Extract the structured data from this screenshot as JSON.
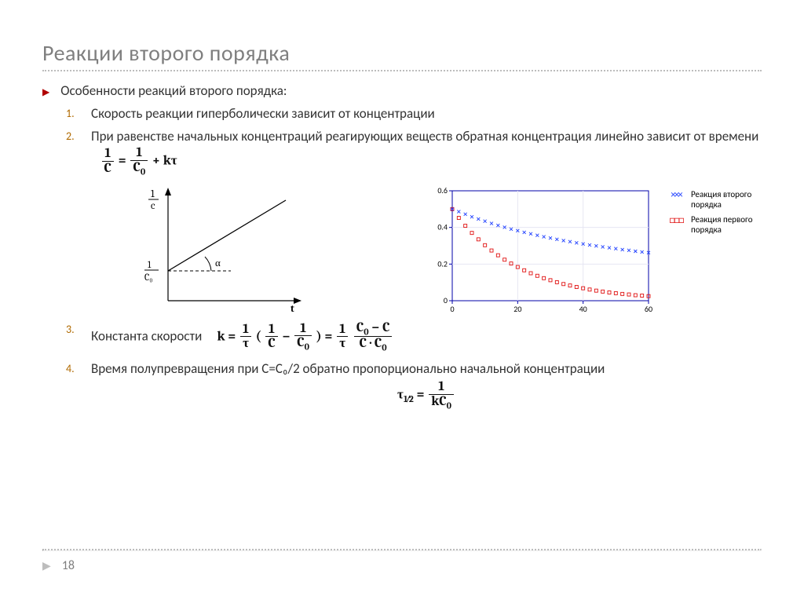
{
  "title": "Реакции второго порядка",
  "bullet": "Особенности реакций второго порядка:",
  "items": {
    "one": "Скорость реакции гиперболически зависит от концентрации",
    "two": "При равенстве начальных концентраций реагирующих веществ обратная концентрация линейно зависит от времени",
    "three": "Константа скорости",
    "four": "Время полупревращения при C=C₀/2 обратно пропорционально начальной концентрации"
  },
  "numbers": {
    "one": "1",
    "two": "2",
    "three": "3",
    "four": "4"
  },
  "formulas": {
    "oneOverC": "1",
    "C": "C",
    "C0": "C",
    "C0sub": "0",
    "k": "k",
    "tau": "τ",
    "half": "1⁄2",
    "eq2_plus": " + kτ",
    "eq3_eq": " = ",
    "minus": " − ",
    "dot": " · "
  },
  "left_chart": {
    "y_label_top": {
      "num": "1",
      "den": "c"
    },
    "y_label_intercept": {
      "num": "1",
      "den": "C₀"
    },
    "x_label": "t",
    "angle": "α",
    "axis_color": "#000000",
    "line_color": "#000000"
  },
  "right_chart": {
    "type": "scatter",
    "background": "#ffffff",
    "box_color": "#0000aa",
    "grid_color": "#e6e6f2",
    "xlim": [
      0,
      60
    ],
    "ylim": [
      0,
      0.6
    ],
    "xticks": [
      0,
      20,
      40,
      60
    ],
    "xtick_labels": [
      "0",
      "20",
      "40",
      "60"
    ],
    "yticks": [
      0,
      0.2,
      0.4,
      0.6
    ],
    "ytick_labels": [
      "0",
      "0.2",
      "0.4",
      "0.6"
    ],
    "s2_color": "#2040ff",
    "s2_marker": "x",
    "s2": [
      [
        0,
        0.5
      ],
      [
        2,
        0.486
      ],
      [
        4,
        0.472
      ],
      [
        6,
        0.458
      ],
      [
        8,
        0.446
      ],
      [
        10,
        0.434
      ],
      [
        12,
        0.422
      ],
      [
        14,
        0.411
      ],
      [
        16,
        0.401
      ],
      [
        18,
        0.391
      ],
      [
        20,
        0.382
      ],
      [
        22,
        0.373
      ],
      [
        24,
        0.365
      ],
      [
        26,
        0.357
      ],
      [
        28,
        0.349
      ],
      [
        30,
        0.342
      ],
      [
        32,
        0.335
      ],
      [
        34,
        0.328
      ],
      [
        36,
        0.322
      ],
      [
        38,
        0.316
      ],
      [
        40,
        0.31
      ],
      [
        42,
        0.304
      ],
      [
        44,
        0.299
      ],
      [
        46,
        0.294
      ],
      [
        48,
        0.289
      ],
      [
        50,
        0.284
      ],
      [
        52,
        0.279
      ],
      [
        54,
        0.275
      ],
      [
        56,
        0.27
      ],
      [
        58,
        0.266
      ],
      [
        60,
        0.262
      ]
    ],
    "s1_color": "#e01010",
    "s1_marker": "square",
    "s1": [
      [
        0,
        0.5
      ],
      [
        2,
        0.452
      ],
      [
        4,
        0.409
      ],
      [
        6,
        0.37
      ],
      [
        8,
        0.335
      ],
      [
        10,
        0.303
      ],
      [
        12,
        0.274
      ],
      [
        14,
        0.248
      ],
      [
        16,
        0.224
      ],
      [
        18,
        0.203
      ],
      [
        20,
        0.184
      ],
      [
        22,
        0.166
      ],
      [
        24,
        0.15
      ],
      [
        26,
        0.136
      ],
      [
        28,
        0.123
      ],
      [
        30,
        0.112
      ],
      [
        32,
        0.101
      ],
      [
        34,
        0.091
      ],
      [
        36,
        0.083
      ],
      [
        38,
        0.075
      ],
      [
        40,
        0.068
      ],
      [
        42,
        0.061
      ],
      [
        44,
        0.055
      ],
      [
        46,
        0.05
      ],
      [
        48,
        0.045
      ],
      [
        50,
        0.041
      ],
      [
        52,
        0.037
      ],
      [
        54,
        0.034
      ],
      [
        56,
        0.03
      ],
      [
        58,
        0.028
      ],
      [
        60,
        0.025
      ]
    ],
    "legend": {
      "s2": "Реакция второго порядка",
      "s1": "Реакция первого порядка"
    },
    "tick_fontsize": 10
  },
  "page_number": "18"
}
